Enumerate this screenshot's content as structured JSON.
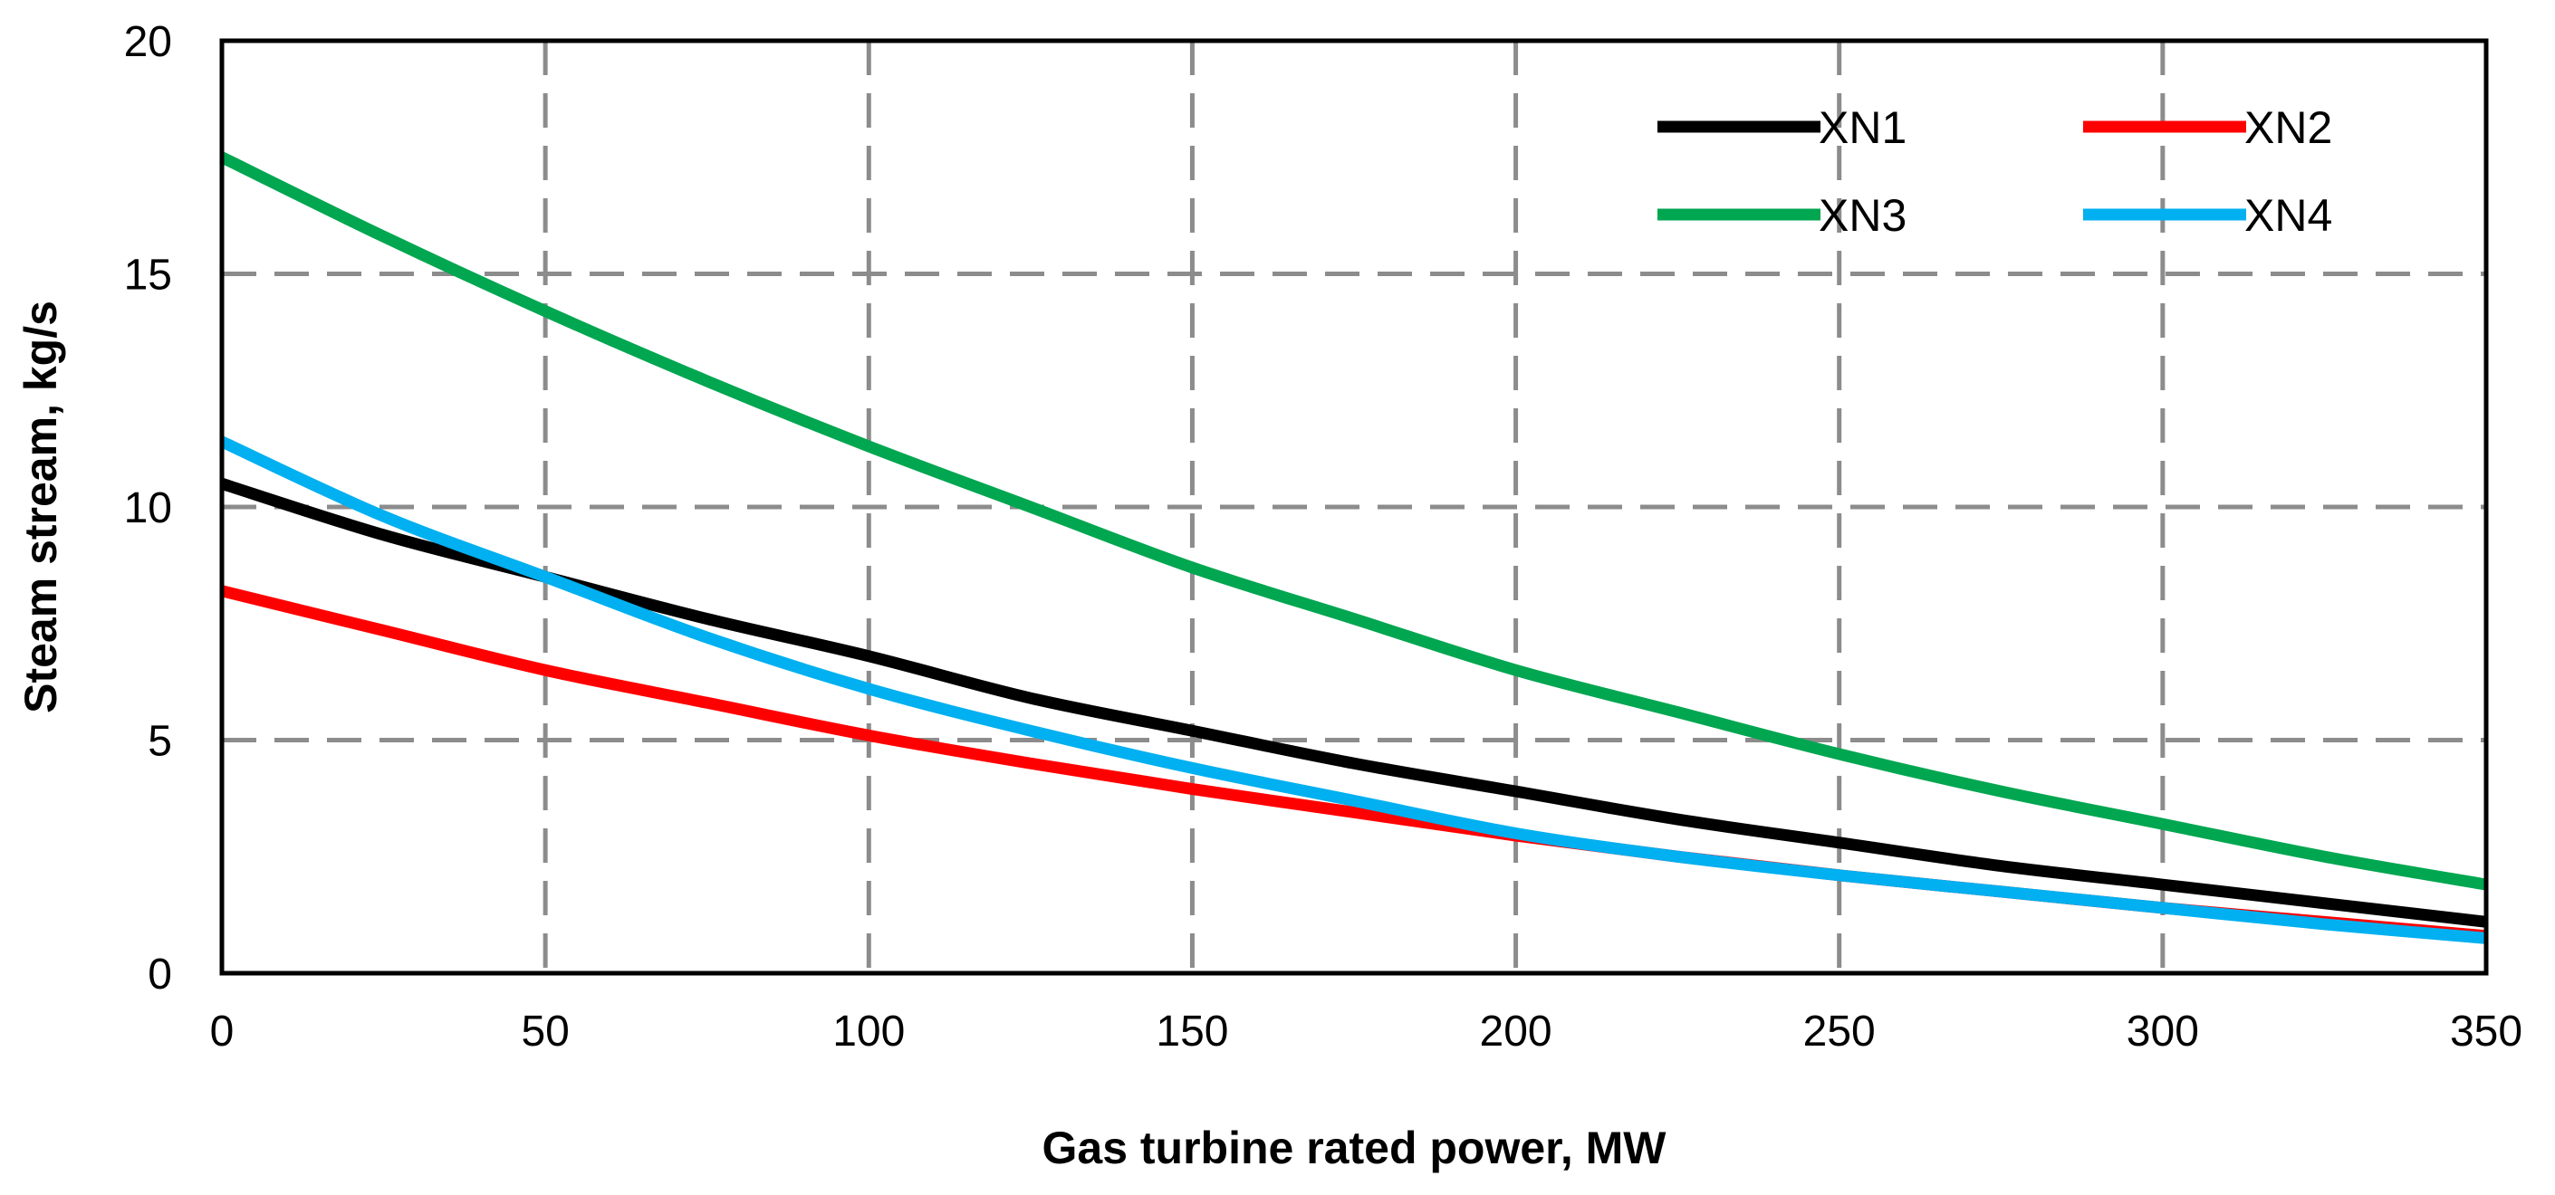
{
  "chart_data": {
    "type": "line",
    "title": "",
    "xlabel": "Gas turbine rated power, MW",
    "ylabel": "Steam stream, kg/s",
    "xlim": [
      0,
      350
    ],
    "ylim": [
      0,
      20
    ],
    "xticks": [
      0,
      50,
      100,
      150,
      200,
      250,
      300,
      350
    ],
    "yticks": [
      0,
      5,
      10,
      15,
      20
    ],
    "xtick_labels": [
      "0",
      "50",
      "100",
      "150",
      "200",
      "250",
      "300",
      "350"
    ],
    "ytick_labels": [
      "0",
      "5",
      "10",
      "15",
      "20"
    ],
    "grid": true,
    "legend_position": "top-right",
    "x": [
      0,
      25,
      50,
      75,
      100,
      125,
      150,
      175,
      200,
      225,
      250,
      275,
      300,
      325,
      350
    ],
    "series": [
      {
        "name": "XN1",
        "color": "#000000",
        "values": [
          10.5,
          9.4,
          8.5,
          7.6,
          6.8,
          5.9,
          5.2,
          4.5,
          3.9,
          3.3,
          2.8,
          2.3,
          1.9,
          1.5,
          1.1
        ]
      },
      {
        "name": "XN2",
        "color": "#ff0000",
        "values": [
          8.2,
          7.35,
          6.5,
          5.8,
          5.1,
          4.5,
          3.95,
          3.45,
          2.95,
          2.5,
          2.1,
          1.75,
          1.4,
          1.1,
          0.8
        ]
      },
      {
        "name": "XN3",
        "color": "#00a650",
        "values": [
          17.5,
          15.8,
          14.2,
          12.7,
          11.3,
          10.0,
          8.7,
          7.6,
          6.5,
          5.6,
          4.7,
          3.9,
          3.2,
          2.5,
          1.9
        ]
      },
      {
        "name": "XN4",
        "color": "#00b0f0",
        "values": [
          11.4,
          9.8,
          8.5,
          7.2,
          6.1,
          5.2,
          4.4,
          3.7,
          3.0,
          2.5,
          2.1,
          1.75,
          1.4,
          1.05,
          0.75
        ]
      }
    ]
  }
}
